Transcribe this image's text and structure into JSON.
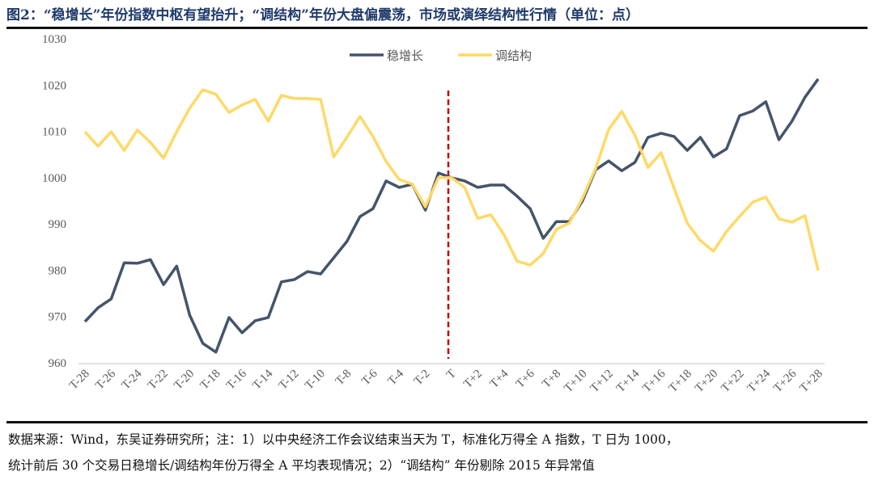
{
  "title": "图2：“稳增长”年份指数中枢有望抬升；“调结构”年份大盘偏震荡，市场或演绎结构性行情（单位：点）",
  "notes": [
    "数据来源：Wind，东吴证券研究所；注：1）以中央经济工作会议结束当天为 T，标准化万得全 A 指数，T 日为 1000，",
    "统计前后 30 个交易日稳增长/调结构年份万得全 A 平均表现情况；2）“调结构” 年份剔除 2015 年异常值"
  ],
  "chart_data": {
    "type": "line",
    "title": "",
    "xlabel": "",
    "ylabel": "",
    "ylim": [
      960,
      1030
    ],
    "yticks": [
      960,
      970,
      980,
      990,
      1000,
      1010,
      1020,
      1030
    ],
    "grid": false,
    "legend": "top-center",
    "reference_line": {
      "x": "T",
      "style": "dashed",
      "color": "#c00000"
    },
    "x": [
      "T-28",
      "T-27",
      "T-26",
      "T-25",
      "T-24",
      "T-23",
      "T-22",
      "T-21",
      "T-20",
      "T-19",
      "T-18",
      "T-17",
      "T-16",
      "T-15",
      "T-14",
      "T-13",
      "T-12",
      "T-11",
      "T-10",
      "T-9",
      "T-8",
      "T-7",
      "T-6",
      "T-5",
      "T-4",
      "T-3",
      "T-2",
      "T-1",
      "T",
      "T+1",
      "T+2",
      "T+3",
      "T+4",
      "T+5",
      "T+6",
      "T+7",
      "T+8",
      "T+9",
      "T+10",
      "T+11",
      "T+12",
      "T+13",
      "T+14",
      "T+15",
      "T+16",
      "T+17",
      "T+18",
      "T+19",
      "T+20",
      "T+21",
      "T+22",
      "T+23",
      "T+24",
      "T+25",
      "T+26",
      "T+27",
      "T+28"
    ],
    "xtick_labels": [
      "T-28",
      "T-26",
      "T-24",
      "T-22",
      "T-20",
      "T-18",
      "T-16",
      "T-14",
      "T-12",
      "T-10",
      "T-8",
      "T-6",
      "T-4",
      "T-2",
      "T",
      "T+2",
      "T+4",
      "T+6",
      "T+8",
      "T+10",
      "T+12",
      "T+14",
      "T+16",
      "T+18",
      "T+20",
      "T+22",
      "T+24",
      "T+26",
      "T+28"
    ],
    "series": [
      {
        "name": "稳增长",
        "color": "#44546a",
        "values": [
          968.9,
          971.9,
          973.8,
          981.6,
          981.5,
          982.3,
          976.9,
          980.9,
          970.3,
          964.2,
          962.3,
          969.8,
          966.5,
          969.1,
          969.8,
          977.5,
          978.0,
          979.7,
          979.2,
          982.7,
          986.2,
          991.6,
          993.3,
          999.3,
          997.9,
          998.6,
          993.0,
          1001.0,
          1000.0,
          999.3,
          997.9,
          998.4,
          998.4,
          996.0,
          993.3,
          986.9,
          990.5,
          990.5,
          995.0,
          1001.7,
          1003.6,
          1001.5,
          1003.3,
          1008.7,
          1009.6,
          1008.9,
          1005.9,
          1008.7,
          1004.5,
          1006.2,
          1013.4,
          1014.4,
          1016.4,
          1008.2,
          1012.2,
          1017.4,
          1021.3
        ]
      },
      {
        "name": "调结构",
        "color": "#ffd966",
        "values": [
          1009.9,
          1006.8,
          1009.9,
          1005.9,
          1010.3,
          1007.6,
          1004.2,
          1009.9,
          1015.0,
          1019.0,
          1018.0,
          1014.1,
          1015.7,
          1016.9,
          1012.2,
          1017.8,
          1017.1,
          1017.1,
          1016.9,
          1004.5,
          1008.7,
          1013.2,
          1008.9,
          1003.5,
          999.6,
          998.6,
          993.7,
          1000.0,
          1000.0,
          997.9,
          991.2,
          992.0,
          987.7,
          982.0,
          981.1,
          983.6,
          988.8,
          990.2,
          995.6,
          1002.0,
          1010.4,
          1014.3,
          1009.2,
          1002.2,
          1005.4,
          997.7,
          990.2,
          986.4,
          984.1,
          988.4,
          991.6,
          994.7,
          995.8,
          991.1,
          990.4,
          991.8,
          979.9
        ]
      }
    ]
  }
}
